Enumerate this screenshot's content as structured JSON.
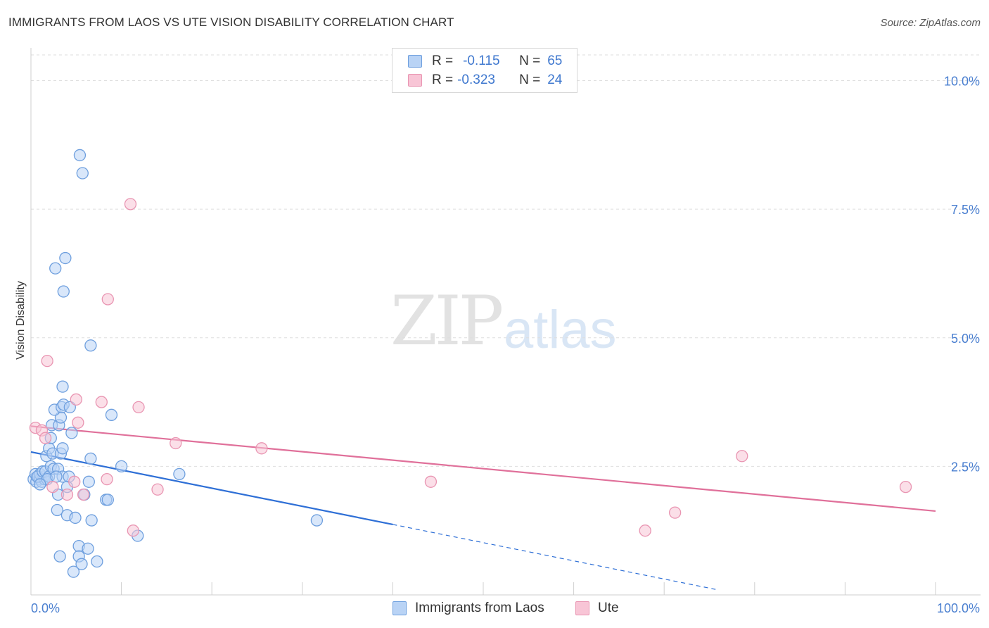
{
  "header": {
    "title": "IMMIGRANTS FROM LAOS VS UTE VISION DISABILITY CORRELATION CHART",
    "source": "Source: ZipAtlas.com"
  },
  "watermark": {
    "zip": "ZIP",
    "atlas": "atlas"
  },
  "legend_top": {
    "row1": {
      "r_label": "R =",
      "r_value": "-0.115",
      "n_label": "N =",
      "n_value": "65"
    },
    "row2": {
      "r_label": "R =",
      "r_value": "-0.323",
      "n_label": "N =",
      "n_value": "24"
    }
  },
  "colors": {
    "blue_fill": "#b9d3f5",
    "blue_stroke": "#6e9fde",
    "blue_line": "#2e6fd6",
    "pink_fill": "#f8c5d6",
    "pink_stroke": "#e995b2",
    "pink_line": "#e0709a",
    "tick_text": "#4a7fd0"
  },
  "chart_data": {
    "type": "scatter",
    "title": "IMMIGRANTS FROM LAOS VS UTE VISION DISABILITY CORRELATION CHART",
    "xlabel": "",
    "ylabel": "Vision Disability",
    "xlim": [
      0,
      100
    ],
    "ylim": [
      0,
      10.5
    ],
    "x_tick_labels": [
      "0.0%",
      "100.0%"
    ],
    "y_ticks": [
      2.5,
      5.0,
      7.5,
      10.0
    ],
    "y_tick_labels": [
      "2.5%",
      "5.0%",
      "7.5%",
      "10.0%"
    ],
    "grid": true,
    "legend_position": "bottom",
    "series": [
      {
        "name": "Immigrants from Laos",
        "color": "#6e9fde",
        "points": [
          [
            0.3,
            2.25
          ],
          [
            0.5,
            2.35
          ],
          [
            0.6,
            2.2
          ],
          [
            0.8,
            2.3
          ],
          [
            1.0,
            2.25
          ],
          [
            1.2,
            2.2
          ],
          [
            1.4,
            2.3
          ],
          [
            1.5,
            2.25
          ],
          [
            1.0,
            2.35
          ],
          [
            0.7,
            2.3
          ],
          [
            1.3,
            2.4
          ],
          [
            1.6,
            2.4
          ],
          [
            2.0,
            2.3
          ],
          [
            1.8,
            2.25
          ],
          [
            2.2,
            2.5
          ],
          [
            2.5,
            2.45
          ],
          [
            3.0,
            2.45
          ],
          [
            3.5,
            2.3
          ],
          [
            2.8,
            2.3
          ],
          [
            1.7,
            2.7
          ],
          [
            2.0,
            2.85
          ],
          [
            2.4,
            2.75
          ],
          [
            3.3,
            2.75
          ],
          [
            3.5,
            2.85
          ],
          [
            2.2,
            3.05
          ],
          [
            2.3,
            3.3
          ],
          [
            3.1,
            3.3
          ],
          [
            4.5,
            3.15
          ],
          [
            3.3,
            3.45
          ],
          [
            2.6,
            3.6
          ],
          [
            3.4,
            3.65
          ],
          [
            3.6,
            3.7
          ],
          [
            4.3,
            3.65
          ],
          [
            3.5,
            4.05
          ],
          [
            6.6,
            4.85
          ],
          [
            3.6,
            5.9
          ],
          [
            2.7,
            6.35
          ],
          [
            3.8,
            6.55
          ],
          [
            5.7,
            8.2
          ],
          [
            5.4,
            8.55
          ],
          [
            8.9,
            3.5
          ],
          [
            6.6,
            2.65
          ],
          [
            10.0,
            2.5
          ],
          [
            16.4,
            2.35
          ],
          [
            6.4,
            2.2
          ],
          [
            4.2,
            2.3
          ],
          [
            4.0,
            2.1
          ],
          [
            3.0,
            1.95
          ],
          [
            5.9,
            1.95
          ],
          [
            8.3,
            1.85
          ],
          [
            8.5,
            1.85
          ],
          [
            2.9,
            1.65
          ],
          [
            4.0,
            1.55
          ],
          [
            4.9,
            1.5
          ],
          [
            6.7,
            1.45
          ],
          [
            11.8,
            1.15
          ],
          [
            31.6,
            1.45
          ],
          [
            5.3,
            0.95
          ],
          [
            6.3,
            0.9
          ],
          [
            3.2,
            0.75
          ],
          [
            5.3,
            0.75
          ],
          [
            7.3,
            0.65
          ],
          [
            5.6,
            0.6
          ],
          [
            4.7,
            0.45
          ],
          [
            1.0,
            2.15
          ]
        ],
        "trend": {
          "x": [
            0,
            40
          ],
          "y": [
            2.78,
            1.37
          ],
          "dashed_extension": {
            "x": [
              40,
              75.9
            ],
            "y": [
              1.37,
              0.1
            ]
          }
        }
      },
      {
        "name": "Ute",
        "color": "#e995b2",
        "points": [
          [
            0.5,
            3.25
          ],
          [
            1.2,
            3.2
          ],
          [
            1.6,
            3.05
          ],
          [
            1.8,
            4.55
          ],
          [
            5.0,
            3.8
          ],
          [
            5.2,
            3.35
          ],
          [
            7.8,
            3.75
          ],
          [
            11.9,
            3.65
          ],
          [
            8.5,
            5.75
          ],
          [
            11.0,
            7.6
          ],
          [
            16.0,
            2.95
          ],
          [
            25.5,
            2.85
          ],
          [
            8.4,
            2.25
          ],
          [
            4.8,
            2.2
          ],
          [
            2.4,
            2.1
          ],
          [
            4.0,
            1.95
          ],
          [
            5.8,
            1.95
          ],
          [
            14.0,
            2.05
          ],
          [
            11.3,
            1.25
          ],
          [
            44.2,
            2.2
          ],
          [
            78.6,
            2.7
          ],
          [
            71.2,
            1.6
          ],
          [
            67.9,
            1.25
          ],
          [
            96.7,
            2.1
          ]
        ],
        "trend": {
          "x": [
            0,
            100
          ],
          "y": [
            3.28,
            1.63
          ]
        }
      }
    ]
  },
  "bottom_legend": {
    "item1": "Immigrants from Laos",
    "item2": "Ute"
  }
}
